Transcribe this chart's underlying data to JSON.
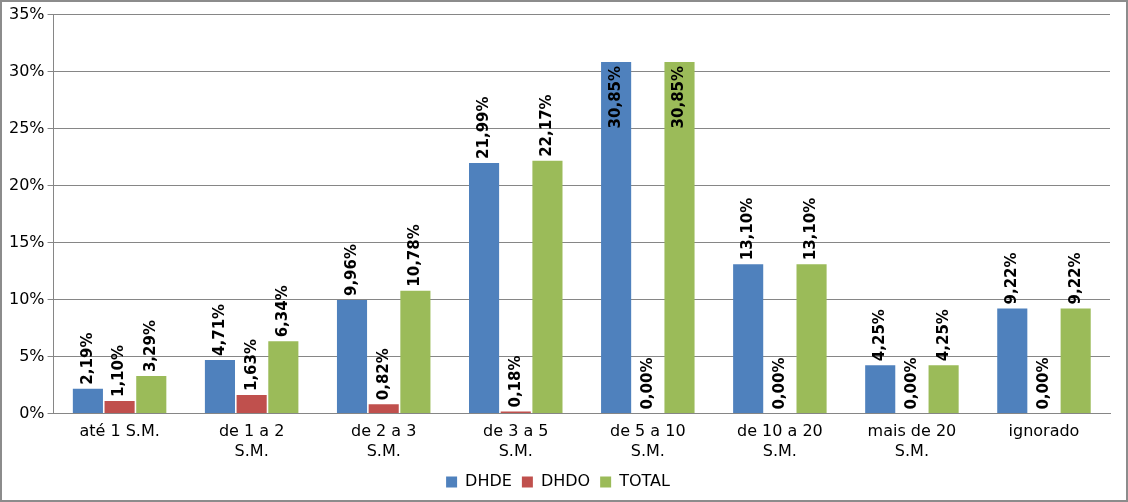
{
  "chart_data": {
    "type": "bar",
    "categories": [
      "até 1 S.M.",
      "de 1 a 2 S.M.",
      "de 2 a 3 S.M.",
      "de 3 a 5 S.M.",
      "de 5 a 10 S.M.",
      "de 10 a 20 S.M.",
      "mais de 20 S.M.",
      "ignorado"
    ],
    "series": [
      {
        "name": "DHDE",
        "color": "#4f81bd",
        "values": [
          2.19,
          4.71,
          9.96,
          21.99,
          30.85,
          13.1,
          4.25,
          9.22
        ],
        "value_labels": [
          "2,19%",
          "4,71%",
          "9,96%",
          "21,99%",
          "30,85%",
          "13,10%",
          "4,25%",
          "9,22%"
        ]
      },
      {
        "name": "DHDO",
        "color": "#c0504d",
        "values": [
          1.1,
          1.63,
          0.82,
          0.18,
          0.0,
          0.0,
          0.0,
          0.0
        ],
        "value_labels": [
          "1,10%",
          "1,63%",
          "0,82%",
          "0,18%",
          "0,00%",
          "0,00%",
          "0,00%",
          "0,00%"
        ]
      },
      {
        "name": "TOTAL",
        "color": "#9bbb59",
        "values": [
          3.29,
          6.34,
          10.78,
          22.17,
          30.85,
          13.1,
          4.25,
          9.22
        ],
        "value_labels": [
          "3,29%",
          "6,34%",
          "10,78%",
          "22,17%",
          "30,85%",
          "13,10%",
          "4,25%",
          "9,22%"
        ]
      }
    ],
    "ylim": [
      0,
      35
    ],
    "yticks": [
      {
        "value": 0,
        "label": "0%"
      },
      {
        "value": 5,
        "label": "5%"
      },
      {
        "value": 10,
        "label": "10%"
      },
      {
        "value": 15,
        "label": "15%"
      },
      {
        "value": 20,
        "label": "20%"
      },
      {
        "value": 25,
        "label": "25%"
      },
      {
        "value": 30,
        "label": "30%"
      },
      {
        "value": 35,
        "label": "35%"
      }
    ],
    "grid": "y",
    "legend": "bottom"
  }
}
